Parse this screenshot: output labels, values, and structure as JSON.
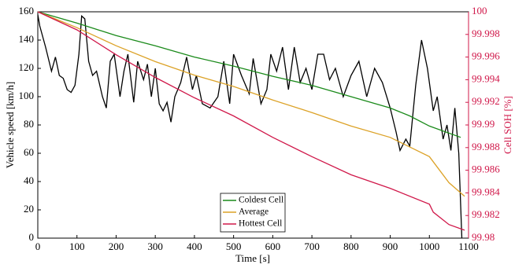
{
  "chart_data": {
    "type": "line",
    "xlabel": "Time [s]",
    "ylabel": "Vehicle speed [km/h]",
    "y2label": "Cell SOH [%]",
    "xlim": [
      0,
      1100
    ],
    "xticks": [
      0,
      100,
      200,
      300,
      400,
      500,
      600,
      700,
      800,
      900,
      1000,
      1100
    ],
    "ylim": [
      0,
      160
    ],
    "yticks": [
      0,
      20,
      40,
      60,
      80,
      100,
      120,
      140,
      160
    ],
    "y2lim": [
      99.98,
      100
    ],
    "y2ticks": [
      99.98,
      99.982,
      99.984,
      99.986,
      99.988,
      99.99,
      99.992,
      99.994,
      99.996,
      99.998,
      100
    ],
    "y2color": "#d0184a",
    "legend": "lower center",
    "series": [
      {
        "color": "#000000",
        "x": [
          0,
          5,
          20,
          35,
          45,
          55,
          65,
          75,
          85,
          95,
          105,
          112,
          120,
          130,
          140,
          150,
          165,
          175,
          185,
          195,
          210,
          220,
          230,
          245,
          255,
          270,
          280,
          290,
          300,
          310,
          320,
          330,
          340,
          350,
          365,
          380,
          395,
          405,
          420,
          440,
          460,
          475,
          490,
          500,
          520,
          540,
          550,
          570,
          585,
          595,
          610,
          625,
          640,
          655,
          670,
          685,
          700,
          715,
          730,
          745,
          760,
          780,
          800,
          820,
          840,
          860,
          880,
          900,
          915,
          925,
          940,
          950,
          965,
          980,
          995,
          1010,
          1020,
          1035,
          1045,
          1055,
          1065,
          1075,
          1083
        ],
        "values": [
          158,
          150,
          135,
          118,
          128,
          115,
          113,
          105,
          103,
          108,
          130,
          157,
          155,
          125,
          115,
          118,
          100,
          92,
          125,
          130,
          100,
          118,
          130,
          96,
          125,
          112,
          123,
          100,
          120,
          95,
          90,
          96,
          82,
          100,
          110,
          128,
          105,
          115,
          95,
          92,
          100,
          125,
          95,
          130,
          115,
          102,
          127,
          95,
          105,
          130,
          118,
          135,
          105,
          135,
          110,
          120,
          105,
          130,
          130,
          112,
          120,
          100,
          115,
          125,
          100,
          120,
          110,
          92,
          75,
          62,
          70,
          65,
          108,
          140,
          120,
          90,
          100,
          70,
          80,
          62,
          92,
          60,
          0
        ]
      },
      {
        "name": "Coldest Cell",
        "color": "#1a8a1a",
        "axis": "y2",
        "x": [
          0,
          100,
          200,
          300,
          400,
          500,
          600,
          700,
          800,
          900,
          950,
          1000,
          1080
        ],
        "values": [
          100,
          99.999,
          99.9979,
          99.997,
          99.996,
          99.9952,
          99.9943,
          99.9935,
          99.9925,
          99.9915,
          99.9908,
          99.9899,
          99.9889
        ]
      },
      {
        "name": "Average",
        "color": "#dca227",
        "axis": "y2",
        "x": [
          0,
          100,
          200,
          300,
          400,
          500,
          600,
          700,
          800,
          900,
          1000,
          1050,
          1090
        ],
        "values": [
          100,
          99.9986,
          99.997,
          99.9956,
          99.9944,
          99.9934,
          99.9922,
          99.9911,
          99.9899,
          99.9889,
          99.9872,
          99.9849,
          99.9837
        ]
      },
      {
        "name": "Hottest Cell",
        "color": "#d0184a",
        "axis": "y2",
        "x": [
          0,
          100,
          200,
          300,
          400,
          500,
          600,
          700,
          800,
          900,
          1000,
          1010,
          1050,
          1090
        ],
        "values": [
          100,
          99.9984,
          99.9962,
          99.9942,
          99.9924,
          99.9908,
          99.9889,
          99.9872,
          99.9856,
          99.9844,
          99.983,
          99.9823,
          99.9812,
          99.9807
        ]
      }
    ]
  }
}
